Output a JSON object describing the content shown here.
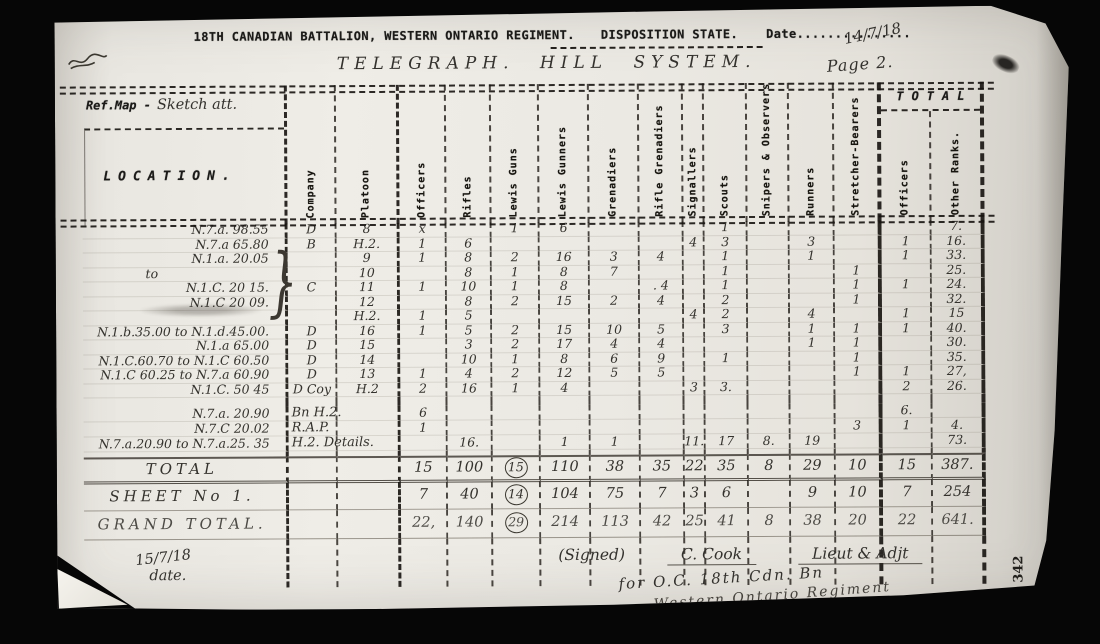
{
  "header": {
    "title": "18TH CANADIAN BATTALION, WESTERN ONTARIO REGIMENT.",
    "subtitle": "DISPOSITION STATE.",
    "date_label": "Date...............",
    "date_value": "14/7/18",
    "system_title": "TELEGRAPH. HILL SYSTEM.",
    "page": "Page 2.",
    "ref_map_label": "Ref.Map -",
    "ref_map_value": "Sketch att."
  },
  "table": {
    "location_header": "LOCATION.",
    "total_header": "TOTAL",
    "group_brace": "}",
    "columns": [
      "Company",
      "Platoon",
      "Officers",
      "Rifles",
      "Lewis Guns",
      "Lewis Gunners",
      "Grenadiers",
      "Rifle Grenadiers",
      "Signallers",
      "Scouts",
      "Snipers & Observers",
      "Runners",
      "Stretcher-Bearers"
    ],
    "total_columns": [
      "Officers",
      "Other Ranks."
    ],
    "rows": [
      {
        "k": "d",
        "c": [
          "N.7.a. 98.55",
          "D",
          "8",
          "x",
          "",
          "1",
          "6",
          "",
          "",
          "",
          "1",
          "",
          "",
          "",
          "",
          "7."
        ]
      },
      {
        "k": "d",
        "c": [
          "N.7.a 65.80",
          "B",
          "H.2.",
          "1",
          "6",
          "",
          "",
          "",
          "",
          "4",
          "3",
          "",
          "3",
          "",
          "1",
          "16."
        ]
      },
      {
        "k": "d",
        "c": [
          "N.1.a. 20.05",
          "",
          "9",
          "1",
          "8",
          "2",
          "16",
          "3",
          "4",
          "",
          "1",
          "",
          "1",
          "",
          "1",
          "33."
        ]
      },
      {
        "k": "d",
        "c": [
          "to",
          "",
          "10",
          "",
          "8",
          "1",
          "8",
          "7",
          "",
          "",
          "1",
          "",
          "",
          "1",
          "",
          "25."
        ]
      },
      {
        "k": "d",
        "c": [
          "N.1.C. 20 15.",
          "C",
          "11",
          "1",
          "10",
          "1",
          "8",
          "",
          ". 4",
          "",
          "1",
          "",
          "",
          "1",
          "1",
          "24."
        ]
      },
      {
        "k": "d",
        "c": [
          "N.1.C 20 09.",
          "",
          "12",
          "",
          "8",
          "2",
          "15",
          "2",
          "4",
          "",
          "2",
          "",
          "",
          "1",
          "",
          "32."
        ]
      },
      {
        "k": "d",
        "c": [
          "",
          "",
          "H.2.",
          "1",
          "5",
          "",
          "",
          "",
          "",
          "4",
          "2",
          "",
          "4",
          "",
          "1",
          "15"
        ]
      },
      {
        "k": "d",
        "c": [
          "N.1.b.35.00 to N.1.d.45.00.",
          "D",
          "16",
          "1",
          "5",
          "2",
          "15",
          "10",
          "5",
          "",
          "3",
          "",
          "1",
          "1",
          "1",
          "40."
        ]
      },
      {
        "k": "d",
        "c": [
          "N.1.a 65.00",
          "D",
          "15",
          "",
          "3",
          "2",
          "17",
          "4",
          "4",
          "",
          "",
          "",
          "1",
          "1",
          "",
          "30."
        ]
      },
      {
        "k": "d",
        "c": [
          "N.1.C.60.70 to N.1.C 60.50",
          "D",
          "14",
          "",
          "10",
          "1",
          "8",
          "6",
          "9",
          "",
          "1",
          "",
          "",
          "1",
          "",
          "35."
        ]
      },
      {
        "k": "d",
        "c": [
          "N.1.C 60.25 to N.7.a 60.90",
          "D",
          "13",
          "1",
          "4",
          "2",
          "12",
          "5",
          "5",
          "",
          "",
          "",
          "",
          "1",
          "1",
          "27,"
        ]
      },
      {
        "k": "d",
        "c": [
          "N.1.C. 50 45",
          "D Coy",
          "H.2",
          "2",
          "16",
          "1",
          "4",
          "",
          "",
          "3",
          "3.",
          "",
          "",
          "",
          "2",
          "26."
        ]
      },
      {
        "k": "sp"
      },
      {
        "k": "hq",
        "c": [
          "N.7.a. 20.90",
          "Bn H.2.",
          "",
          "6",
          "",
          "",
          "",
          "",
          "",
          "",
          "",
          "",
          "",
          "",
          "6.",
          ""
        ]
      },
      {
        "k": "hq",
        "c": [
          "N.7.C 20.02",
          "R.A.P.",
          "",
          "1",
          "",
          "",
          "",
          "",
          "",
          "",
          "",
          "",
          "",
          "3",
          "1",
          "4."
        ]
      },
      {
        "k": "hq",
        "c": [
          "N.7.a.20.90 to N.7.a.25. 35",
          "H.2. Details.",
          "",
          "",
          "16.",
          "",
          "1",
          "1",
          "",
          "11.",
          "17",
          "8.",
          "19",
          "",
          "",
          "73."
        ]
      },
      {
        "k": "sp2"
      },
      {
        "k": "tot",
        "c": [
          "TOTAL",
          "",
          "",
          "15",
          "100",
          "(15)",
          "110",
          "38",
          "35",
          "22",
          "35",
          "8",
          "29",
          "10",
          "15",
          "387."
        ]
      },
      {
        "k": "sheet",
        "c": [
          "SHEET No 1.",
          "",
          "",
          "7",
          "40",
          "(14)",
          "104",
          "75",
          "7",
          "3",
          "6",
          "",
          "9",
          "10",
          "7",
          "254"
        ]
      },
      {
        "k": "grand",
        "c": [
          "GRAND TOTAL.",
          "",
          "",
          "22,",
          "140",
          "(29)",
          "214",
          "113",
          "42",
          "25",
          "41",
          "8",
          "38",
          "20",
          "22",
          "641."
        ]
      },
      {
        "k": "tail"
      }
    ]
  },
  "footer": {
    "date_value": "15/7/18",
    "date_label": "date.",
    "signed_label": "(Signed)",
    "signed_name": "C. Cook",
    "signed_rank": "Lieut & Adjt",
    "signed_for": "for O.C. 18th Cdn. Bn",
    "signed_regiment": "Western Ontario Regiment",
    "margin_number": "342"
  }
}
